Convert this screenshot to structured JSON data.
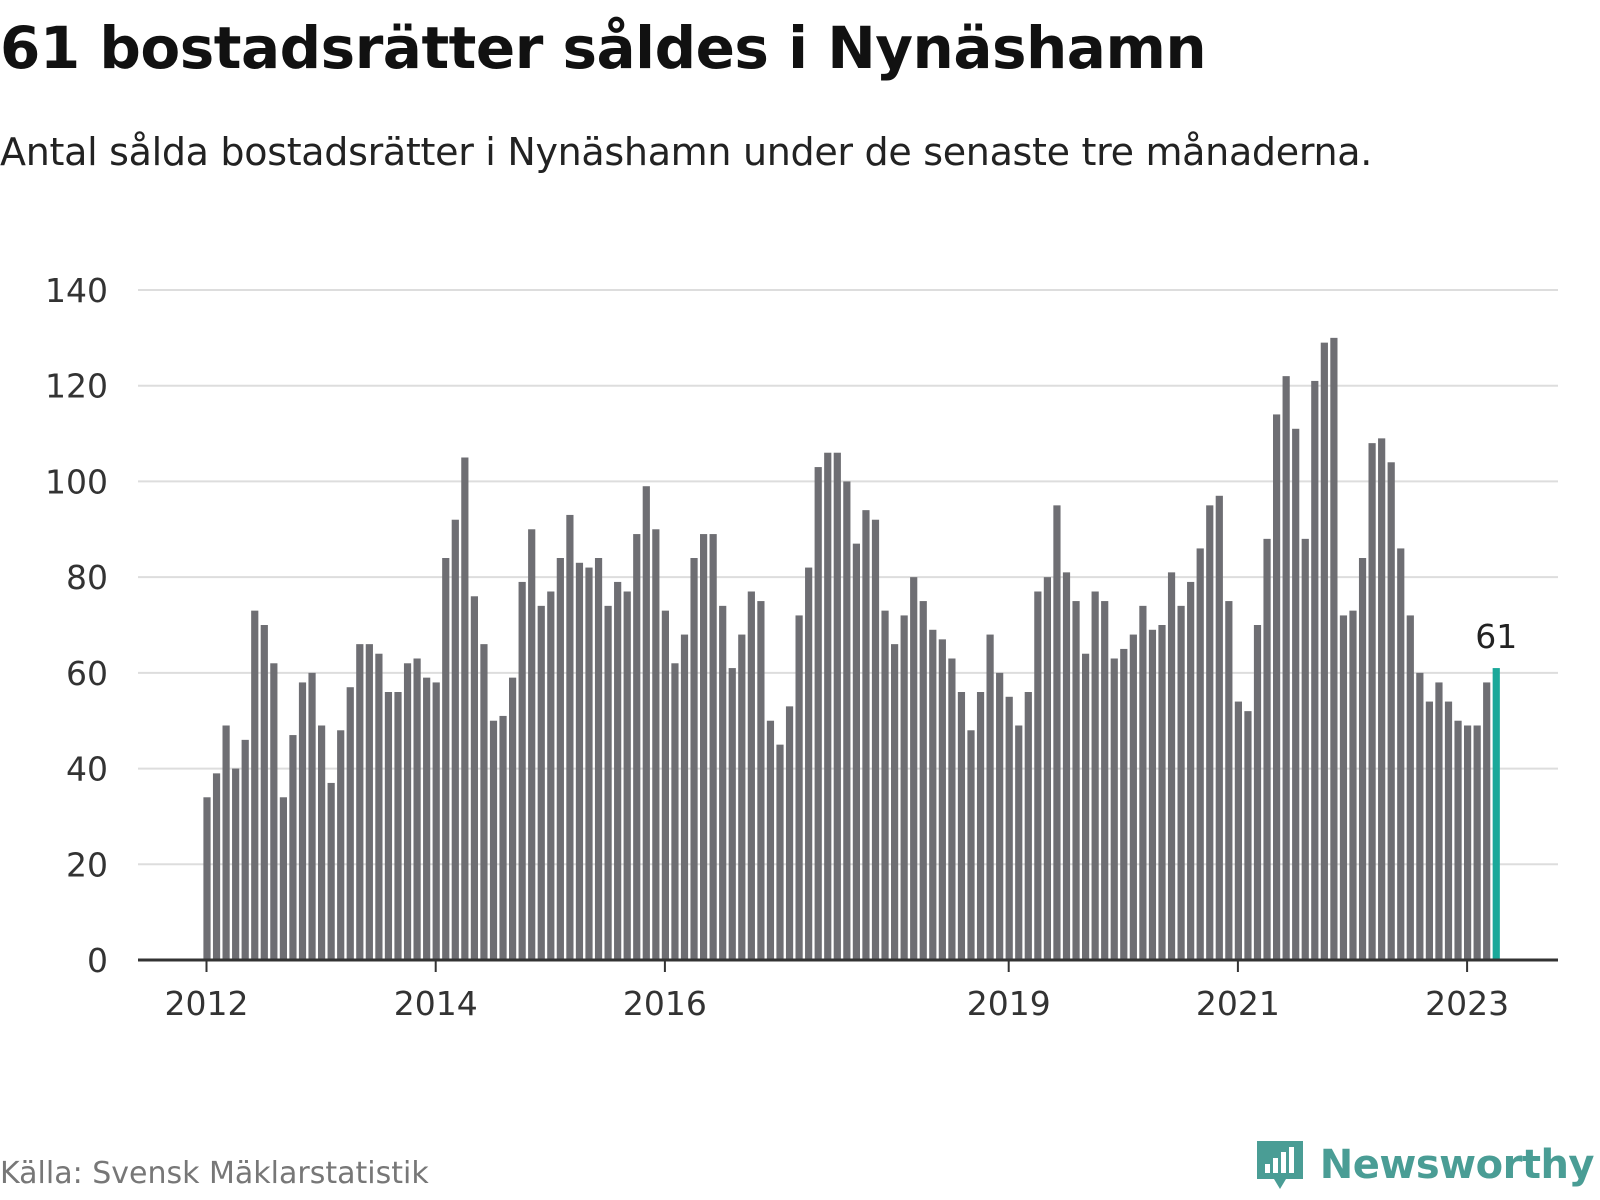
{
  "header": {
    "title": "61 bostadsrätter såldes i Nynäshamn",
    "subtitle": "Antal sålda bostadsrätter i Nynäshamn under de senaste tre månaderna."
  },
  "footer": {
    "source": "Källa: Svensk Mäklarstatistik",
    "brand": "Newsworthy"
  },
  "colors": {
    "bar": "#6e6e73",
    "highlight": "#1aa89a",
    "grid": "#dddddd",
    "axis": "#333333",
    "brand": "#4a9d95"
  },
  "chart_data": {
    "type": "bar",
    "title": "61 bostadsrätter såldes i Nynäshamn",
    "xlabel": "",
    "ylabel": "",
    "ylim": [
      0,
      140
    ],
    "yticks": [
      0,
      20,
      40,
      60,
      80,
      100,
      120,
      140
    ],
    "grid": true,
    "x_tick_labels": [
      {
        "label": "2012",
        "index": 0
      },
      {
        "label": "2014",
        "index": 24
      },
      {
        "label": "2016",
        "index": 48
      },
      {
        "label": "2019",
        "index": 84
      },
      {
        "label": "2021",
        "index": 108
      },
      {
        "label": "2023",
        "index": 132
      }
    ],
    "highlight_index": 135,
    "highlight_label": "61",
    "values": [
      34,
      39,
      49,
      40,
      46,
      73,
      70,
      62,
      34,
      47,
      58,
      60,
      49,
      37,
      48,
      57,
      66,
      66,
      64,
      56,
      56,
      62,
      63,
      59,
      58,
      84,
      92,
      105,
      76,
      66,
      50,
      51,
      59,
      79,
      90,
      74,
      77,
      84,
      93,
      83,
      82,
      84,
      74,
      79,
      77,
      89,
      99,
      90,
      73,
      62,
      68,
      84,
      89,
      89,
      74,
      61,
      68,
      77,
      75,
      50,
      45,
      53,
      72,
      82,
      103,
      106,
      106,
      100,
      87,
      94,
      92,
      73,
      66,
      72,
      80,
      75,
      69,
      67,
      63,
      56,
      48,
      56,
      68,
      60,
      55,
      49,
      56,
      77,
      80,
      95,
      81,
      75,
      64,
      77,
      75,
      63,
      65,
      68,
      74,
      69,
      70,
      81,
      74,
      79,
      86,
      95,
      97,
      75,
      54,
      52,
      70,
      88,
      114,
      122,
      111,
      88,
      121,
      129,
      130,
      72,
      73,
      84,
      108,
      109,
      104,
      86,
      72,
      60,
      54,
      58,
      54,
      50,
      49,
      49,
      58,
      61
    ]
  }
}
